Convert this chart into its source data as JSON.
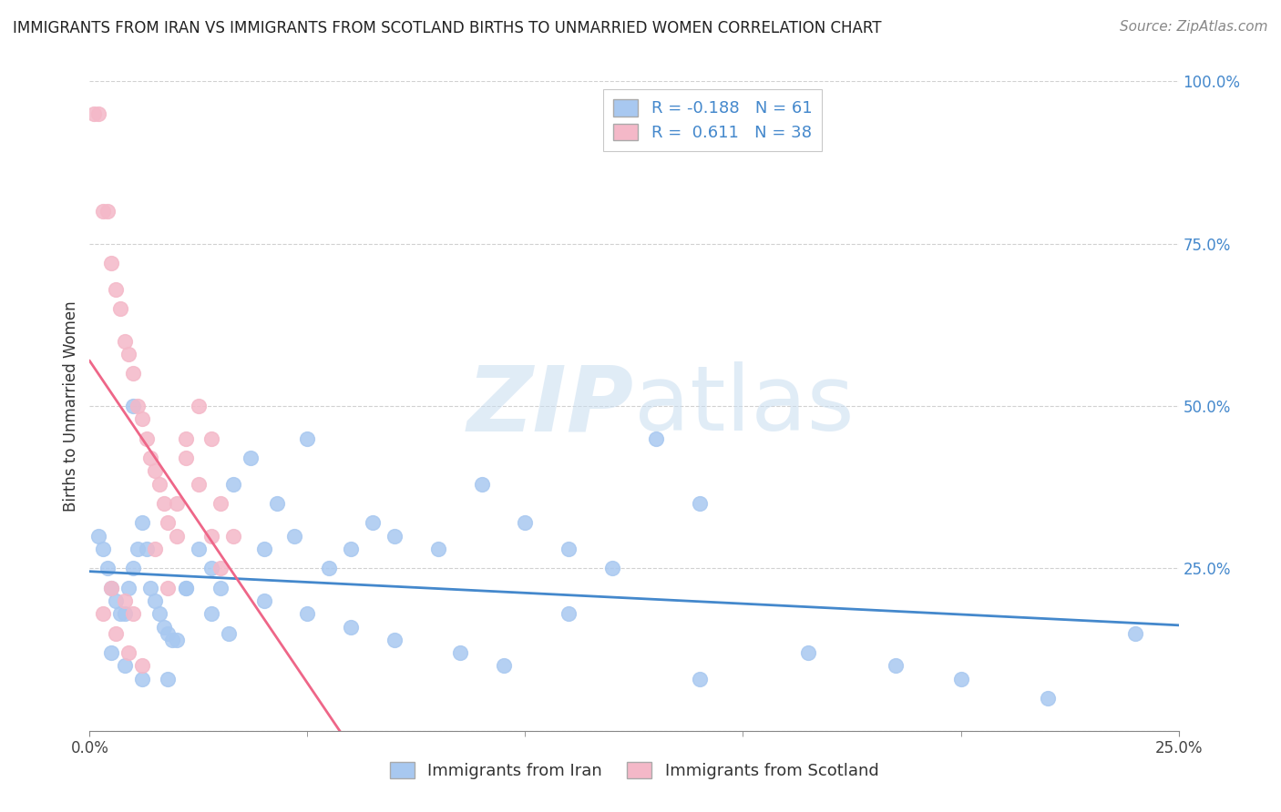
{
  "title": "IMMIGRANTS FROM IRAN VS IMMIGRANTS FROM SCOTLAND BIRTHS TO UNMARRIED WOMEN CORRELATION CHART",
  "source": "Source: ZipAtlas.com",
  "ylabel": "Births to Unmarried Women",
  "legend_label1": "Immigrants from Iran",
  "legend_label2": "Immigrants from Scotland",
  "R_iran": -0.188,
  "N_iran": 61,
  "R_scotland": 0.611,
  "N_scotland": 38,
  "xlim": [
    0.0,
    0.25
  ],
  "ylim": [
    0.0,
    1.0
  ],
  "yticks": [
    0.0,
    0.25,
    0.5,
    0.75,
    1.0
  ],
  "ytick_labels": [
    "",
    "25.0%",
    "50.0%",
    "75.0%",
    "100.0%"
  ],
  "color_iran": "#a8c8f0",
  "color_scotland": "#f4b8c8",
  "line_color_iran": "#4488cc",
  "line_color_scotland": "#ee6688",
  "watermark_zip": "ZIP",
  "watermark_atlas": "atlas",
  "iran_x": [
    0.002,
    0.003,
    0.004,
    0.005,
    0.006,
    0.007,
    0.008,
    0.009,
    0.01,
    0.011,
    0.012,
    0.013,
    0.014,
    0.015,
    0.016,
    0.017,
    0.018,
    0.019,
    0.02,
    0.022,
    0.025,
    0.028,
    0.03,
    0.033,
    0.037,
    0.04,
    0.043,
    0.047,
    0.05,
    0.055,
    0.06,
    0.065,
    0.07,
    0.08,
    0.09,
    0.1,
    0.11,
    0.12,
    0.13,
    0.14,
    0.005,
    0.008,
    0.012,
    0.018,
    0.022,
    0.028,
    0.032,
    0.04,
    0.05,
    0.06,
    0.07,
    0.085,
    0.095,
    0.11,
    0.14,
    0.165,
    0.185,
    0.2,
    0.22,
    0.24,
    0.01
  ],
  "iran_y": [
    0.3,
    0.28,
    0.25,
    0.22,
    0.2,
    0.18,
    0.18,
    0.22,
    0.25,
    0.28,
    0.32,
    0.28,
    0.22,
    0.2,
    0.18,
    0.16,
    0.15,
    0.14,
    0.14,
    0.22,
    0.28,
    0.25,
    0.22,
    0.38,
    0.42,
    0.28,
    0.35,
    0.3,
    0.45,
    0.25,
    0.28,
    0.32,
    0.3,
    0.28,
    0.38,
    0.32,
    0.28,
    0.25,
    0.45,
    0.35,
    0.12,
    0.1,
    0.08,
    0.08,
    0.22,
    0.18,
    0.15,
    0.2,
    0.18,
    0.16,
    0.14,
    0.12,
    0.1,
    0.18,
    0.08,
    0.12,
    0.1,
    0.08,
    0.05,
    0.15,
    0.5
  ],
  "scotland_x": [
    0.001,
    0.002,
    0.003,
    0.004,
    0.005,
    0.006,
    0.007,
    0.008,
    0.009,
    0.01,
    0.011,
    0.012,
    0.013,
    0.014,
    0.015,
    0.016,
    0.017,
    0.018,
    0.02,
    0.022,
    0.025,
    0.028,
    0.03,
    0.033,
    0.005,
    0.008,
    0.01,
    0.015,
    0.018,
    0.02,
    0.022,
    0.025,
    0.028,
    0.03,
    0.003,
    0.006,
    0.009,
    0.012
  ],
  "scotland_y": [
    0.95,
    0.95,
    0.8,
    0.8,
    0.72,
    0.68,
    0.65,
    0.6,
    0.58,
    0.55,
    0.5,
    0.48,
    0.45,
    0.42,
    0.4,
    0.38,
    0.35,
    0.32,
    0.3,
    0.45,
    0.5,
    0.45,
    0.35,
    0.3,
    0.22,
    0.2,
    0.18,
    0.28,
    0.22,
    0.35,
    0.42,
    0.38,
    0.3,
    0.25,
    0.18,
    0.15,
    0.12,
    0.1
  ]
}
